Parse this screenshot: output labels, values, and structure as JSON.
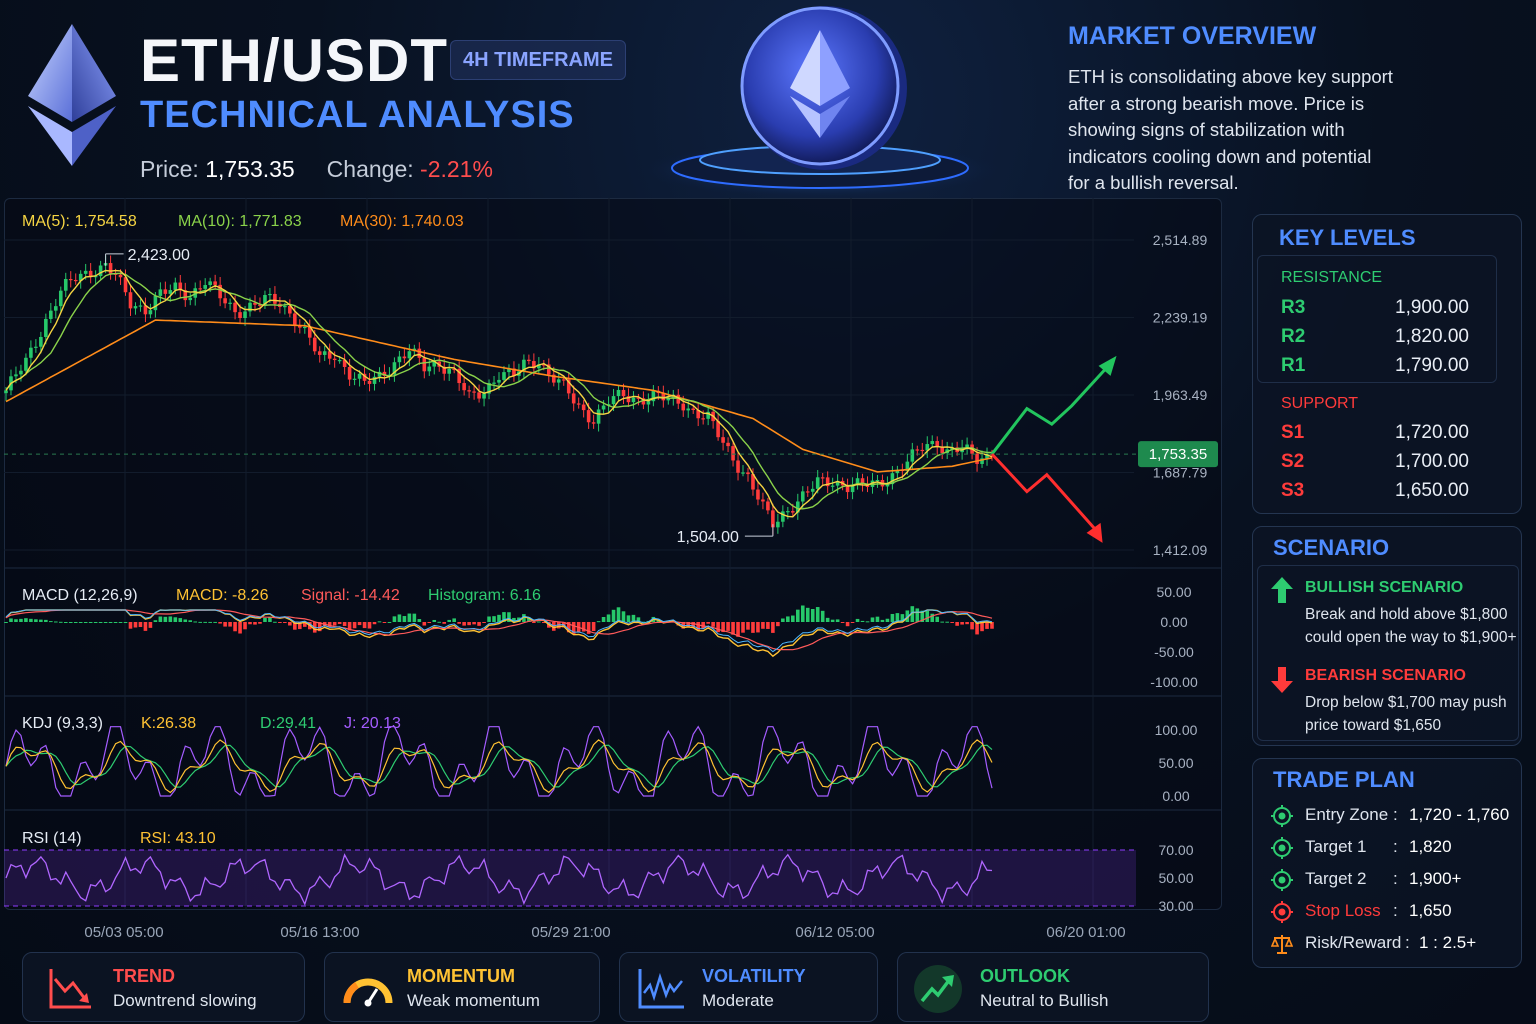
{
  "header": {
    "title": "ETH/USDT",
    "timeframe_badge": "4H TIMEFRAME",
    "subtitle": "TECHNICAL ANALYSIS",
    "price_label": "Price:",
    "price_value": "1,753.35",
    "change_label": "Change:",
    "change_value": "-2.21%"
  },
  "market_overview": {
    "title": "MARKET OVERVIEW",
    "lines": [
      "ETH is consolidating above key support",
      "after a strong bearish move. Price is",
      "showing signs of stabilization with",
      "indicators cooling down and potential",
      "for a bullish reversal."
    ]
  },
  "key_levels": {
    "title": "KEY LEVELS",
    "resistance_label": "RESISTANCE",
    "support_label": "SUPPORT",
    "resistance": [
      {
        "name": "R3",
        "value": "1,900.00"
      },
      {
        "name": "R2",
        "value": "1,820.00"
      },
      {
        "name": "R1",
        "value": "1,790.00"
      }
    ],
    "support": [
      {
        "name": "S1",
        "value": "1,720.00"
      },
      {
        "name": "S2",
        "value": "1,700.00"
      },
      {
        "name": "S3",
        "value": "1,650.00"
      }
    ]
  },
  "scenario": {
    "title": "SCENARIO",
    "bullish_title": "BULLISH SCENARIO",
    "bullish_lines": [
      "Break and hold above $1,800",
      "could open the way to $1,900+"
    ],
    "bearish_title": "BEARISH SCENARIO",
    "bearish_lines": [
      "Drop below $1,700 may push",
      "price toward $1,650"
    ]
  },
  "trade_plan": {
    "title": "TRADE PLAN",
    "rows": [
      {
        "label": "Entry Zone",
        "sep": ":",
        "value": "1,720 - 1,760",
        "icon": "target-icon"
      },
      {
        "label": "Target 1",
        "sep": ":",
        "value": "1,820",
        "icon": "target-icon"
      },
      {
        "label": "Target 2",
        "sep": ":",
        "value": "1,900+",
        "icon": "target-icon"
      },
      {
        "label": "Stop Loss",
        "sep": ":",
        "value": "1,650",
        "icon": "stop-icon"
      },
      {
        "label": "Risk/Reward",
        "sep": ":",
        "value": "1 : 2.5+",
        "icon": "scale-icon"
      }
    ]
  },
  "bottom_cards": [
    {
      "title": "TREND",
      "sub": "Downtrend slowing",
      "icon": "trend-down-icon",
      "color": "#ff4d4d"
    },
    {
      "title": "MOMENTUM",
      "sub": "Weak momentum",
      "icon": "gauge-icon",
      "color": "#ffc233"
    },
    {
      "title": "VOLATILITY",
      "sub": "Moderate",
      "icon": "volatility-icon",
      "color": "#4f8cff"
    },
    {
      "title": "OUTLOOK",
      "sub": "Neutral to Bullish",
      "icon": "trend-up-icon",
      "color": "#2ecc71"
    }
  ],
  "colors": {
    "bull": "#26c86a",
    "bear": "#ff3b3b",
    "ma5": "#f5d442",
    "ma10": "#8ad24a",
    "ma30": "#ff8c1a",
    "accent": "#4f8cff",
    "rsi": "#8f3cff"
  },
  "chart_data": {
    "type": "line",
    "price_panel": {
      "ma_labels": [
        "MA(5): 1,754.58",
        "MA(10): 1,771.83",
        "MA(30): 1,740.03"
      ],
      "y_ticks": [
        "2,514.89",
        "2,239.19",
        "1,963.49",
        "1,687.79",
        "1,412.09"
      ],
      "ylim": [
        1412.09,
        2514.89
      ],
      "current_price_label": "1,753.35",
      "current_price": 1753.35,
      "high_label": "2,423.00",
      "high": 2423.0,
      "low_label": "1,504.00",
      "low": 1504.0,
      "close_path": [
        [
          0,
          1980
        ],
        [
          4,
          2080
        ],
        [
          8,
          2230
        ],
        [
          11,
          2330
        ],
        [
          14,
          2380
        ],
        [
          17,
          2405
        ],
        [
          20,
          2423
        ],
        [
          22,
          2385
        ],
        [
          25,
          2290
        ],
        [
          28,
          2270
        ],
        [
          31,
          2320
        ],
        [
          34,
          2340
        ],
        [
          37,
          2320
        ],
        [
          40,
          2370
        ],
        [
          43,
          2310
        ],
        [
          46,
          2260
        ],
        [
          49,
          2280
        ],
        [
          52,
          2300
        ],
        [
          55,
          2290
        ],
        [
          58,
          2240
        ],
        [
          61,
          2160
        ],
        [
          63,
          2090
        ],
        [
          66,
          2110
        ],
        [
          69,
          2040
        ],
        [
          72,
          2000
        ],
        [
          75,
          2030
        ],
        [
          78,
          2080
        ],
        [
          81,
          2120
        ],
        [
          84,
          2060
        ],
        [
          87,
          2080
        ],
        [
          90,
          2040
        ],
        [
          93,
          1950
        ],
        [
          96,
          1980
        ],
        [
          99,
          2040
        ],
        [
          102,
          2030
        ],
        [
          104,
          2070
        ],
        [
          107,
          2090
        ],
        [
          109,
          2040
        ],
        [
          112,
          1990
        ],
        [
          115,
          1920
        ],
        [
          118,
          1880
        ],
        [
          121,
          1940
        ],
        [
          124,
          1960
        ],
        [
          127,
          1950
        ],
        [
          130,
          1960
        ],
        [
          133,
          1945
        ],
        [
          136,
          1935
        ],
        [
          138,
          1905
        ],
        [
          141,
          1880
        ],
        [
          143,
          1820
        ],
        [
          146,
          1740
        ],
        [
          149,
          1670
        ],
        [
          152,
          1560
        ],
        [
          154,
          1504
        ],
        [
          157,
          1560
        ],
        [
          160,
          1600
        ],
        [
          163,
          1650
        ],
        [
          166,
          1660
        ],
        [
          169,
          1640
        ],
        [
          172,
          1640
        ],
        [
          175,
          1650
        ],
        [
          178,
          1680
        ],
        [
          181,
          1720
        ],
        [
          184,
          1780
        ],
        [
          187,
          1800
        ],
        [
          189,
          1760
        ],
        [
          192,
          1770
        ],
        [
          195,
          1740
        ],
        [
          198,
          1753.35
        ]
      ],
      "ma30_path": [
        [
          0,
          1940
        ],
        [
          30,
          2230
        ],
        [
          60,
          2210
        ],
        [
          90,
          2090
        ],
        [
          110,
          2030
        ],
        [
          130,
          1980
        ],
        [
          150,
          1880
        ],
        [
          160,
          1770
        ],
        [
          175,
          1690
        ],
        [
          190,
          1710
        ],
        [
          198,
          1740
        ]
      ],
      "scenario_up": [
        [
          198,
          1753.35
        ],
        [
          205,
          1915
        ],
        [
          210,
          1860
        ],
        [
          214,
          1925
        ],
        [
          221,
          2060
        ]
      ],
      "scenario_down": [
        [
          198,
          1753.35
        ],
        [
          205,
          1620
        ],
        [
          209,
          1680
        ],
        [
          219,
          1480
        ]
      ]
    },
    "macd_panel": {
      "label": "MACD (12,26,9)",
      "macd_label": "MACD: -8.26",
      "signal_label": "Signal: -14.42",
      "histogram_label": "Histogram: 6.16",
      "y_ticks": [
        "50.00",
        "0.00",
        "-50.00",
        "-100.00"
      ],
      "ylim": [
        -100,
        50
      ]
    },
    "kdj_panel": {
      "label": "KDJ (9,3,3)",
      "k_label": "K:26.38",
      "d_label": "D:29.41",
      "j_label": "J: 20.13",
      "y_ticks": [
        "100.00",
        "50.00",
        "0.00"
      ],
      "ylim": [
        0,
        100
      ]
    },
    "rsi_panel": {
      "label": "RSI (14)",
      "rsi_label": "RSI: 43.10",
      "y_ticks": [
        "70.00",
        "50.00",
        "30.00"
      ],
      "ylim": [
        30,
        70
      ]
    },
    "x_ticks": [
      "05/03 05:00",
      "05/16 13:00",
      "05/29 21:00",
      "06/12 05:00",
      "06/20 01:00"
    ]
  }
}
